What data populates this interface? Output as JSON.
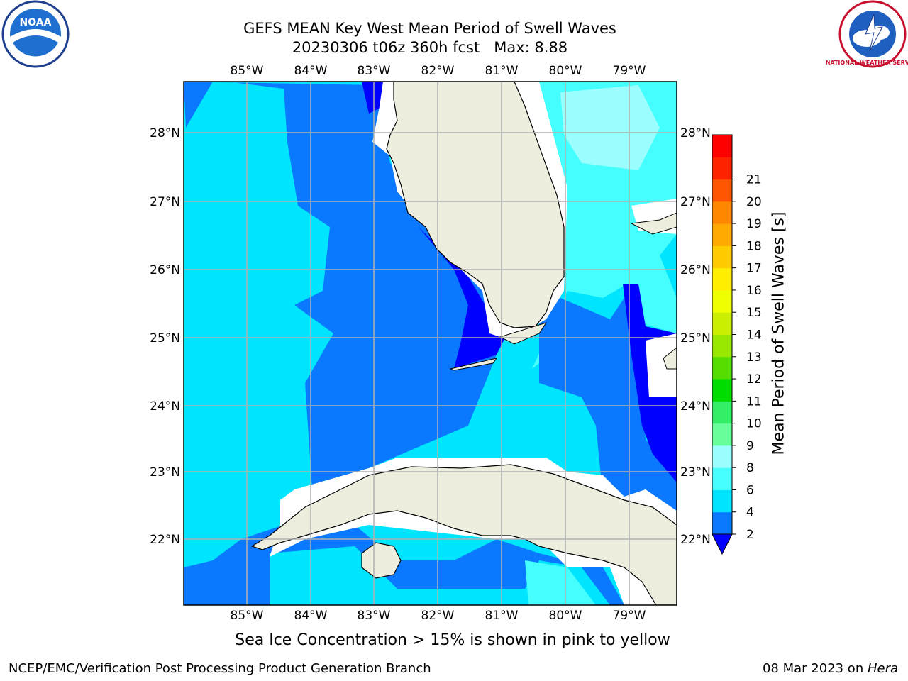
{
  "header": {
    "title_line1": "GEFS MEAN Key West Mean Period of Swell Waves",
    "title_line2": "20230306 t06z 360h fcst   Max: 8.88"
  },
  "logos": {
    "left": "NOAA",
    "right": "NATIONAL WEATHER SERVICE"
  },
  "map": {
    "lon_labels": [
      "85°W",
      "84°W",
      "83°W",
      "82°W",
      "81°W",
      "80°W",
      "79°W"
    ],
    "lat_labels": [
      "28°N",
      "27°N",
      "26°N",
      "25°N",
      "24°N",
      "23°N",
      "22°N"
    ],
    "lon_range": [
      -86.0,
      -78.25
    ],
    "lat_range": [
      21.0,
      28.75
    ]
  },
  "colorbar": {
    "label": "Mean Period of Swell Waves [s]",
    "ticks": [
      "2",
      "4",
      "6",
      "8",
      "9",
      "10",
      "11",
      "12",
      "13",
      "14",
      "15",
      "16",
      "17",
      "18",
      "19",
      "20",
      "21"
    ],
    "colors": [
      "#0a78ff",
      "#00e5ff",
      "#45ffff",
      "#9bffff",
      "#66ff99",
      "#33ee66",
      "#00dd00",
      "#55dd00",
      "#99e600",
      "#ccee00",
      "#eeff00",
      "#ffee00",
      "#ffcc00",
      "#ffaa00",
      "#ff8800",
      "#ff5500",
      "#ff2200",
      "#ff0000"
    ],
    "under_color": "#0000ff"
  },
  "legend_colors": {
    "land": "#eeeedf",
    "band_2_4": "#0a78ff",
    "band_lt2": "#0000ff",
    "band_4_6": "#00e5ff",
    "band_6_8": "#45ffff",
    "band_8_9": "#9bffff",
    "grid": "#b0b0b0"
  },
  "note": "Sea Ice Concentration > 15% is shown in pink to yellow",
  "footer": {
    "left": "NCEP/EMC/Verification Post Processing Product Generation Branch",
    "right_date": "08 Mar 2023 on ",
    "right_host": "Hera"
  }
}
